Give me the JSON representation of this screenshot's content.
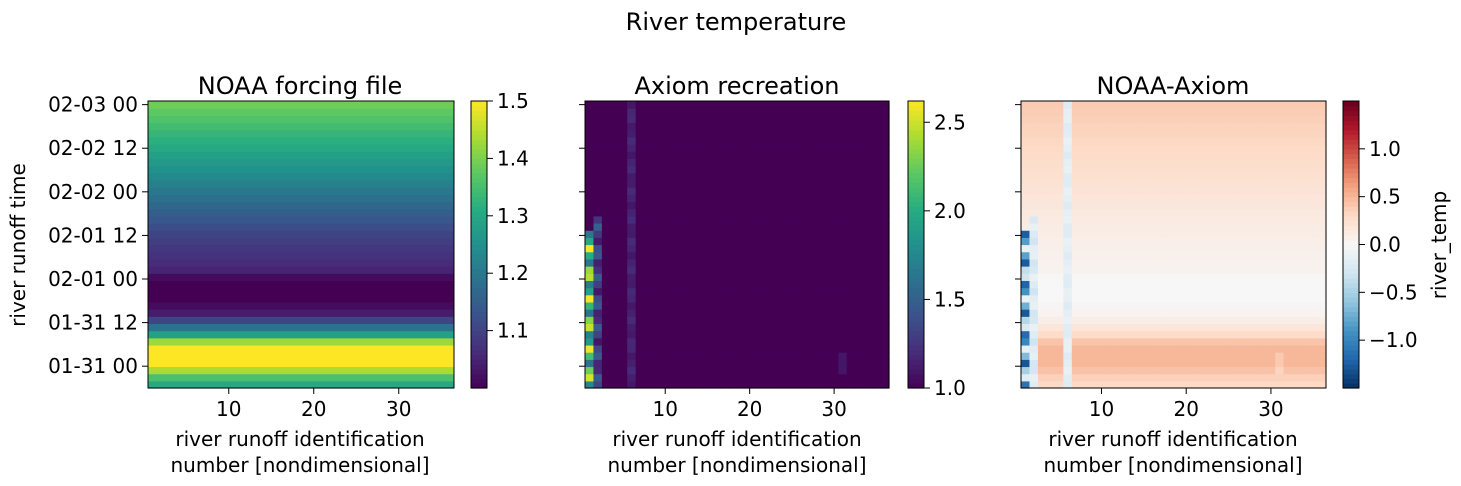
{
  "figure": {
    "suptitle": "River temperature"
  },
  "chart_data": [
    {
      "type": "heatmap",
      "title": "NOAA forcing file",
      "xlabel": [
        "river runoff identification",
        "number [nondimensional]"
      ],
      "ylabel": "river runoff time",
      "x_ticks": [
        10,
        20,
        30
      ],
      "y_ticks": [
        "01-31 00",
        "01-31 12",
        "02-01 00",
        "02-01 12",
        "02-02 00",
        "02-02 12",
        "02-03 00"
      ],
      "xlim": [
        0.5,
        36.5
      ],
      "time_range": [
        "01-30 18",
        "02-03 01"
      ],
      "colormap": "viridis",
      "colorbar": {
        "ticks": [
          1.1,
          1.2,
          1.3,
          1.4,
          1.5
        ],
        "vmin": 1.0,
        "vmax": 1.5,
        "label": ""
      },
      "structure": "uniform across river id; value varies with time only",
      "time_profile": [
        {
          "time": "01-30 18",
          "value": 1.28
        },
        {
          "time": "01-30 22",
          "value": 1.38
        },
        {
          "time": "01-31 00",
          "value": 1.5
        },
        {
          "time": "01-31 06",
          "value": 1.5
        },
        {
          "time": "01-31 08",
          "value": 1.33
        },
        {
          "time": "01-31 10",
          "value": 1.22
        },
        {
          "time": "01-31 14",
          "value": 1.05
        },
        {
          "time": "01-31 18",
          "value": 1.0
        },
        {
          "time": "02-01 00",
          "value": 1.0
        },
        {
          "time": "02-01 02",
          "value": 1.05
        },
        {
          "time": "02-01 12",
          "value": 1.1
        },
        {
          "time": "02-02 00",
          "value": 1.2
        },
        {
          "time": "02-02 12",
          "value": 1.3
        },
        {
          "time": "02-03 00",
          "value": 1.39
        },
        {
          "time": "02-03 01",
          "value": 1.4
        }
      ]
    },
    {
      "type": "heatmap",
      "title": "Axiom recreation",
      "xlabel": [
        "river runoff identification",
        "number [nondimensional]"
      ],
      "x_ticks": [
        10,
        20,
        30
      ],
      "xlim": [
        0.5,
        36.5
      ],
      "colormap": "viridis",
      "colorbar": {
        "ticks": [
          1.0,
          1.5,
          2.0,
          2.5
        ],
        "vmin": 1.0,
        "vmax": 2.62,
        "label": ""
      },
      "background_value": 1.0,
      "features": [
        {
          "river_id": 1,
          "time_start": "01-30 18",
          "time_end": "02-01 14",
          "value_range": [
            1.6,
            2.6
          ]
        },
        {
          "river_id": 2,
          "time_start": "01-30 18",
          "time_end": "02-01 18",
          "value_range": [
            1.1,
            1.5
          ]
        },
        {
          "river_id": 6,
          "time_start": "01-30 18",
          "time_end": "02-03 01",
          "value_range": [
            1.1,
            1.2
          ]
        },
        {
          "river_id": 31,
          "time_start": "01-30 22",
          "time_end": "01-31 04",
          "value_range": [
            1.1,
            1.1
          ]
        }
      ]
    },
    {
      "type": "heatmap",
      "title": "NOAA-Axiom",
      "xlabel": [
        "river runoff identification",
        "number [nondimensional]"
      ],
      "x_ticks": [
        10,
        20,
        30
      ],
      "xlim": [
        0.5,
        36.5
      ],
      "colormap": "RdBu_r",
      "colorbar": {
        "ticks": [
          -1.0,
          -0.5,
          0.0,
          0.5,
          1.0
        ],
        "vmin": -1.5,
        "vmax": 1.5,
        "label": "river_temp"
      },
      "time_profile": [
        {
          "time": "01-30 18",
          "value": 0.28
        },
        {
          "time": "01-30 22",
          "value": 0.38
        },
        {
          "time": "01-31 00",
          "value": 0.5
        },
        {
          "time": "01-31 06",
          "value": 0.5
        },
        {
          "time": "01-31 08",
          "value": 0.33
        },
        {
          "time": "01-31 10",
          "value": 0.22
        },
        {
          "time": "01-31 14",
          "value": 0.05
        },
        {
          "time": "01-31 18",
          "value": 0.0
        },
        {
          "time": "02-01 00",
          "value": 0.0
        },
        {
          "time": "02-01 02",
          "value": 0.05
        },
        {
          "time": "02-01 12",
          "value": 0.1
        },
        {
          "time": "02-02 00",
          "value": 0.2
        },
        {
          "time": "02-02 12",
          "value": 0.3
        },
        {
          "time": "02-03 00",
          "value": 0.39
        },
        {
          "time": "02-03 01",
          "value": 0.4
        }
      ],
      "column_offsets": [
        {
          "river_id": 1,
          "time_end": "02-01 14",
          "range": [
            -1.3,
            -0.1
          ]
        },
        {
          "river_id": 2,
          "time_end": "02-01 18",
          "range": [
            -0.3,
            -0.1
          ]
        },
        {
          "river_id": 6,
          "range": [
            -0.2,
            -0.1
          ]
        },
        {
          "river_id": 31,
          "time_start": "01-30 22",
          "time_end": "01-31 04",
          "offset": -0.1
        }
      ]
    }
  ]
}
